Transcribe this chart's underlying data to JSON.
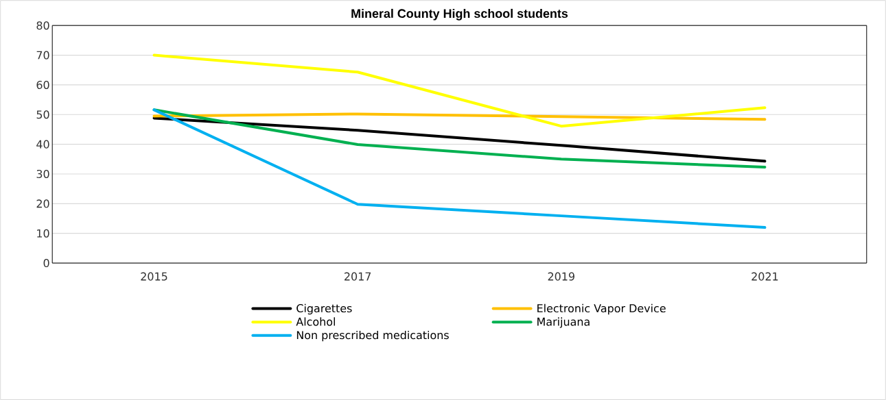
{
  "chart_data": {
    "type": "line",
    "title": "Mineral County High school students",
    "categories": [
      "2015",
      "2017",
      "2019",
      "2021"
    ],
    "series": [
      {
        "name": "Cigarettes",
        "color": "#000000",
        "values": [
          48.8,
          44.7,
          39.6,
          34.3
        ]
      },
      {
        "name": "Electronic Vapor Device",
        "color": "#ffc000",
        "values": [
          49.5,
          50.2,
          49.3,
          48.4
        ]
      },
      {
        "name": "Alcohol",
        "color": "#ffff00",
        "values": [
          70,
          64.3,
          46.1,
          52.3
        ]
      },
      {
        "name": "Marijuana",
        "color": "#00b050",
        "values": [
          51.6,
          39.9,
          35,
          32.3
        ]
      },
      {
        "name": "Non prescribed medications",
        "color": "#00b0f0",
        "values": [
          51.6,
          19.8,
          15.9,
          12
        ]
      }
    ],
    "ylim": [
      0,
      80
    ],
    "yticks": [
      0,
      10,
      20,
      30,
      40,
      50,
      60,
      70,
      80
    ],
    "grid": "y",
    "legend": "bottom",
    "marker": "none",
    "line_style": "solid"
  }
}
